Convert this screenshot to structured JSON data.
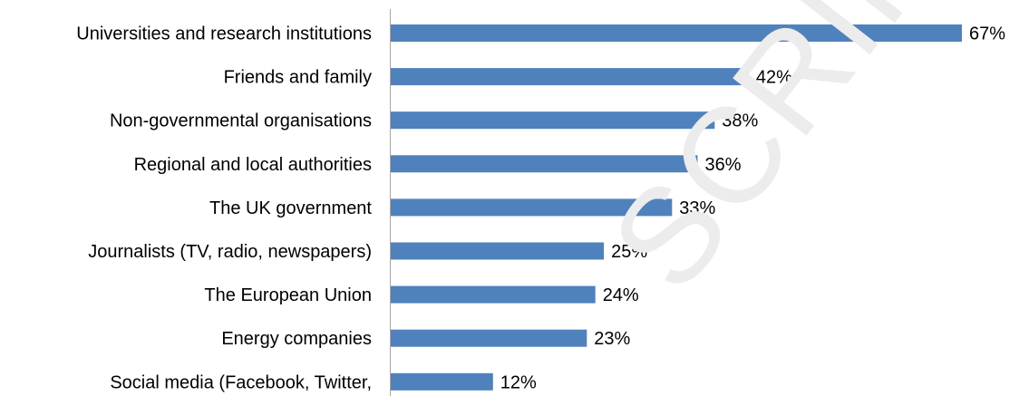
{
  "chart_data": {
    "type": "bar",
    "orientation": "horizontal",
    "categories": [
      "Universities and research institutions",
      "Friends and family",
      "Non-governmental organisations",
      "Regional and local authorities",
      "The UK government",
      "Journalists (TV, radio, newspapers)",
      "The European Union",
      "Energy companies",
      "Social media (Facebook, Twitter,"
    ],
    "values": [
      67,
      42,
      38,
      36,
      33,
      25,
      24,
      23,
      12
    ],
    "value_labels": [
      "67%",
      "42%",
      "38%",
      "36%",
      "33%",
      "25%",
      "24%",
      "23%",
      "12%"
    ],
    "unit": "%",
    "xlim": [
      0,
      67
    ],
    "grid": false,
    "bar_color": "#4f81bd",
    "axis_color": "#a6a6a6"
  },
  "watermark": {
    "text": "SCRIPT",
    "color": "#ececec"
  }
}
